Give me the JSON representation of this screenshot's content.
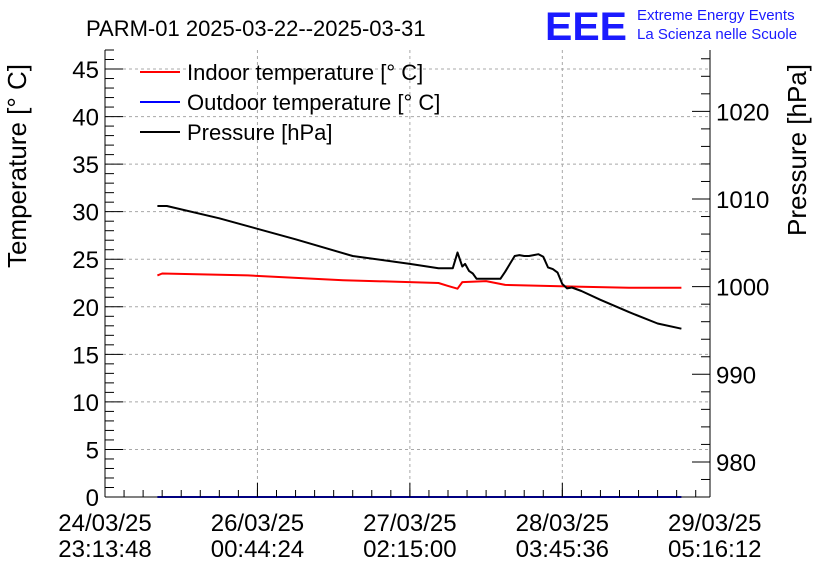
{
  "header": {
    "title": "PARM-01 2025-03-22--2025-03-31",
    "logo_text": "EEE",
    "org_line1": "Extreme Energy Events",
    "org_line2": "La Scienza nelle Scuole"
  },
  "colors": {
    "indoor": "#ff0000",
    "outdoor": "#0000ff",
    "pressure": "#000000",
    "logo": "#1a1aff",
    "grid": "#a8a8a8"
  },
  "chart_data": {
    "type": "line",
    "title": "PARM-01 2025-03-22--2025-03-31",
    "xlabel": "",
    "ylabel": "Temperature [° C]",
    "y2label": "Pressure [hPa]",
    "ylim": [
      0,
      47
    ],
    "y2lim": [
      976,
      1027
    ],
    "xlim": [
      0,
      6.35
    ],
    "yticks": [
      0,
      5,
      10,
      15,
      20,
      25,
      30,
      35,
      40,
      45
    ],
    "y2ticks": [
      980,
      990,
      1000,
      1010,
      1020
    ],
    "xticks": [
      {
        "pos": 0,
        "line1": "24/03/25",
        "line2": "23:13:48"
      },
      {
        "pos": 1.6,
        "line1": "26/03/25",
        "line2": "00:44:24"
      },
      {
        "pos": 3.2,
        "line1": "27/03/25",
        "line2": "02:15:00"
      },
      {
        "pos": 4.8,
        "line1": "28/03/25",
        "line2": "03:45:36"
      },
      {
        "pos": 6.4,
        "line1": "29/03/25",
        "line2": "05:16:12"
      }
    ],
    "grid": true,
    "legend_position": "top-left",
    "series": [
      {
        "name": "Indoor temperature [° C]",
        "axis": "left",
        "color": "#ff0000",
        "x": [
          0.55,
          0.6,
          1.5,
          2.5,
          3.5,
          3.6,
          3.7,
          3.75,
          4.0,
          4.2,
          5.0,
          5.5,
          6.0,
          6.05
        ],
        "y": [
          23.3,
          23.5,
          23.3,
          22.8,
          22.5,
          22.2,
          21.9,
          22.6,
          22.7,
          22.3,
          22.1,
          22.0,
          22.0,
          22.0
        ]
      },
      {
        "name": "Outdoor temperature [° C]",
        "axis": "left",
        "color": "#0000ff",
        "x": [
          0.55,
          6.05
        ],
        "y": [
          0,
          0
        ]
      },
      {
        "name": "Pressure [hPa]",
        "axis": "right",
        "color": "#000000",
        "x": [
          0.55,
          0.65,
          1.2,
          2.0,
          2.6,
          3.2,
          3.5,
          3.65,
          3.7,
          3.75,
          3.78,
          3.82,
          3.86,
          3.9,
          4.0,
          4.15,
          4.2,
          4.25,
          4.3,
          4.35,
          4.4,
          4.45,
          4.5,
          4.55,
          4.6,
          4.65,
          4.7,
          4.75,
          4.8,
          4.85,
          4.9,
          5.0,
          5.2,
          5.5,
          5.8,
          6.05
        ],
        "y": [
          1009.2,
          1009.2,
          1007.8,
          1005.4,
          1003.5,
          1002.6,
          1002.1,
          1002.1,
          1003.9,
          1002.3,
          1002.6,
          1001.8,
          1001.5,
          1000.9,
          1000.9,
          1000.9,
          1001.7,
          1002.6,
          1003.5,
          1003.6,
          1003.5,
          1003.5,
          1003.6,
          1003.7,
          1003.4,
          1002.2,
          1002.0,
          1001.6,
          1000.3,
          999.8,
          999.9,
          999.5,
          998.5,
          997.1,
          995.8,
          995.2
        ]
      }
    ]
  }
}
